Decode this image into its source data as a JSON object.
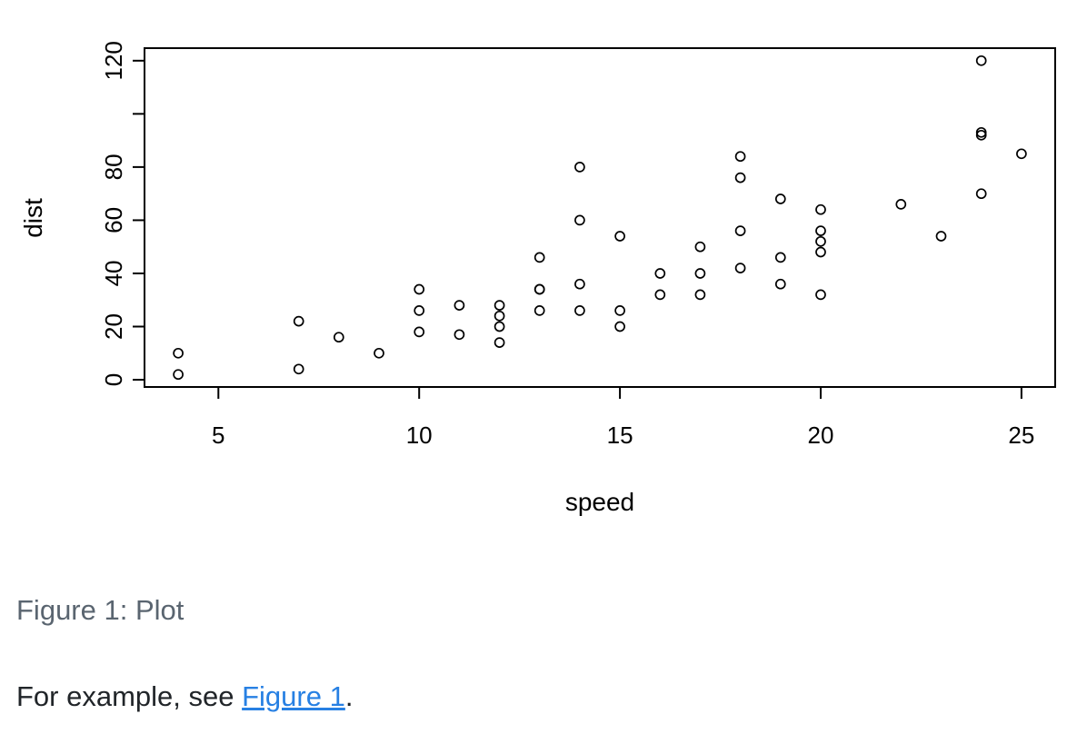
{
  "figure": {
    "caption": "Figure 1: Plot"
  },
  "body_text": {
    "prefix": "For example, see ",
    "link_label": "Figure 1",
    "suffix": "."
  },
  "colors": {
    "plot_stroke": "#000000",
    "caption_text": "#5a6570",
    "body_text": "#212529",
    "link": "#2780e3",
    "background": "#ffffff"
  },
  "chart_data": {
    "type": "scatter",
    "title": "",
    "xlabel": "speed",
    "ylabel": "dist",
    "marker": "open-circle",
    "grid": false,
    "legend": null,
    "xlim": [
      3.16,
      25.84
    ],
    "ylim": [
      -2.72,
      124.72
    ],
    "x_ticks": [
      {
        "value": 5,
        "label": "5"
      },
      {
        "value": 10,
        "label": "10"
      },
      {
        "value": 15,
        "label": "15"
      },
      {
        "value": 20,
        "label": "20"
      },
      {
        "value": 25,
        "label": "25"
      }
    ],
    "y_ticks": [
      {
        "value": 0,
        "label": "0"
      },
      {
        "value": 20,
        "label": "20"
      },
      {
        "value": 40,
        "label": "40"
      },
      {
        "value": 60,
        "label": "60"
      },
      {
        "value": 80,
        "label": "80"
      },
      {
        "value": 100,
        "label": ""
      },
      {
        "value": 120,
        "label": "120"
      }
    ],
    "x": [
      4,
      4,
      7,
      7,
      8,
      9,
      10,
      10,
      10,
      11,
      11,
      12,
      12,
      12,
      12,
      13,
      13,
      13,
      13,
      14,
      14,
      14,
      14,
      15,
      15,
      15,
      16,
      16,
      17,
      17,
      17,
      18,
      18,
      18,
      18,
      19,
      19,
      19,
      20,
      20,
      20,
      20,
      20,
      22,
      23,
      24,
      24,
      24,
      24,
      25
    ],
    "y": [
      2,
      10,
      4,
      22,
      16,
      10,
      18,
      26,
      34,
      17,
      28,
      14,
      20,
      24,
      28,
      26,
      34,
      34,
      46,
      26,
      36,
      60,
      80,
      20,
      26,
      54,
      32,
      40,
      32,
      40,
      50,
      42,
      56,
      76,
      84,
      36,
      46,
      68,
      32,
      48,
      52,
      56,
      64,
      66,
      54,
      70,
      92,
      93,
      120,
      85
    ]
  }
}
